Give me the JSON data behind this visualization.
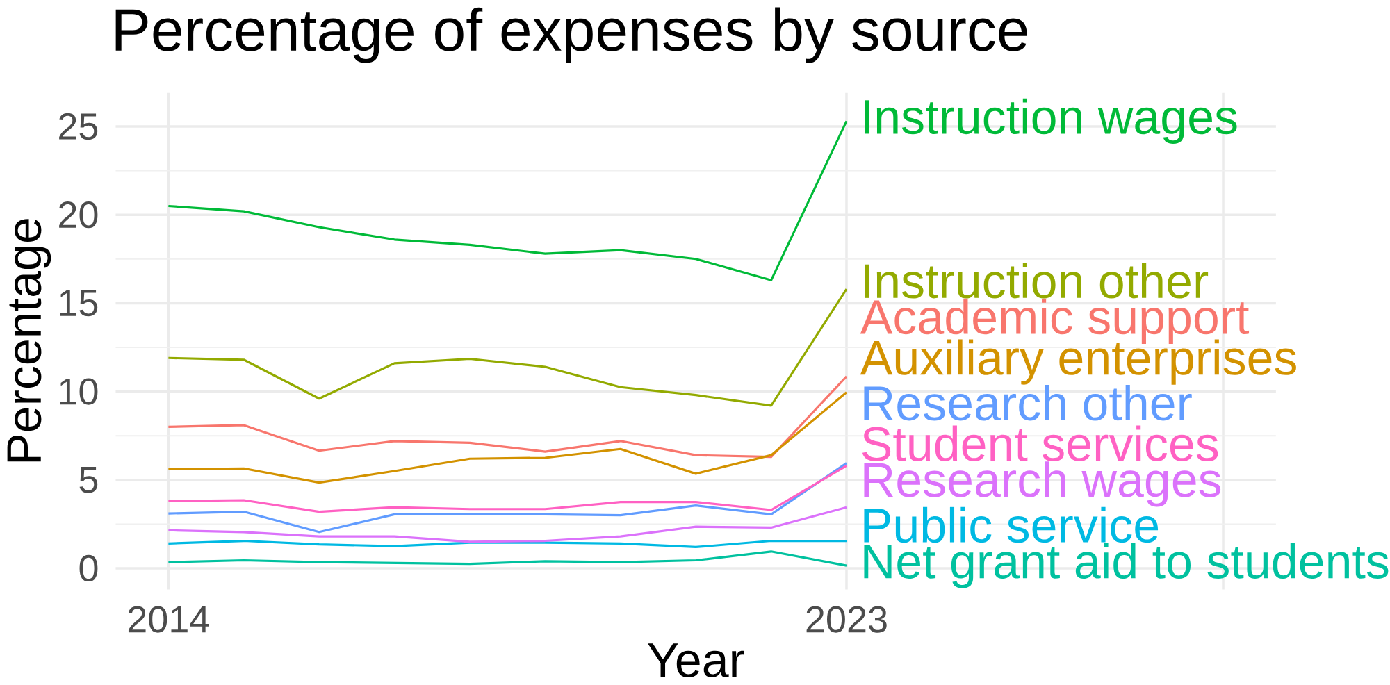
{
  "chart_data": {
    "type": "line",
    "title": "Percentage of expenses by source",
    "xlabel": "Year",
    "ylabel": "Percentage",
    "x": [
      2014,
      2015,
      2016,
      2017,
      2018,
      2019,
      2020,
      2021,
      2022,
      2023
    ],
    "xlim": [
      2013.3,
      2028.7
    ],
    "ylim": [
      -1.2,
      26.9
    ],
    "xticks": [
      2014,
      2023,
      {
        "value": 2028,
        "label": null
      }
    ],
    "yticks": [
      0,
      5,
      10,
      15,
      20,
      25
    ],
    "grid": true,
    "legend": false,
    "marker": "none",
    "line_style": "solid",
    "series": [
      {
        "name": "Academic support",
        "color": "#F8766D",
        "values": [
          8.0,
          8.1,
          6.65,
          7.2,
          7.1,
          6.6,
          7.2,
          6.4,
          6.3,
          10.85
        ]
      },
      {
        "name": "Auxiliary enterprises",
        "color": "#D39200",
        "values": [
          5.6,
          5.65,
          4.85,
          5.5,
          6.2,
          6.25,
          6.75,
          5.35,
          6.4,
          9.95
        ]
      },
      {
        "name": "Instruction other",
        "color": "#93AA00",
        "values": [
          11.9,
          11.8,
          9.6,
          11.6,
          11.85,
          11.4,
          10.25,
          9.8,
          9.2,
          15.8
        ]
      },
      {
        "name": "Instruction wages",
        "color": "#00BA38",
        "values": [
          20.5,
          20.2,
          19.3,
          18.6,
          18.3,
          17.8,
          18.0,
          17.5,
          16.3,
          25.3
        ]
      },
      {
        "name": "Net grant aid to students",
        "color": "#00C19F",
        "values": [
          0.35,
          0.45,
          0.35,
          0.3,
          0.25,
          0.4,
          0.35,
          0.45,
          0.95,
          0.15
        ]
      },
      {
        "name": "Public service",
        "color": "#00B9E3",
        "values": [
          1.4,
          1.55,
          1.35,
          1.25,
          1.45,
          1.45,
          1.4,
          1.2,
          1.55,
          1.55
        ]
      },
      {
        "name": "Research other",
        "color": "#619CFF",
        "values": [
          3.1,
          3.2,
          2.05,
          3.05,
          3.05,
          3.05,
          3.0,
          3.55,
          3.05,
          5.95
        ]
      },
      {
        "name": "Research wages",
        "color": "#DB72FB",
        "values": [
          2.15,
          2.05,
          1.8,
          1.8,
          1.5,
          1.55,
          1.8,
          2.35,
          2.3,
          3.45
        ]
      },
      {
        "name": "Student services",
        "color": "#FF61C3",
        "values": [
          3.8,
          3.85,
          3.2,
          3.45,
          3.35,
          3.35,
          3.75,
          3.75,
          3.3,
          5.8
        ]
      }
    ]
  }
}
